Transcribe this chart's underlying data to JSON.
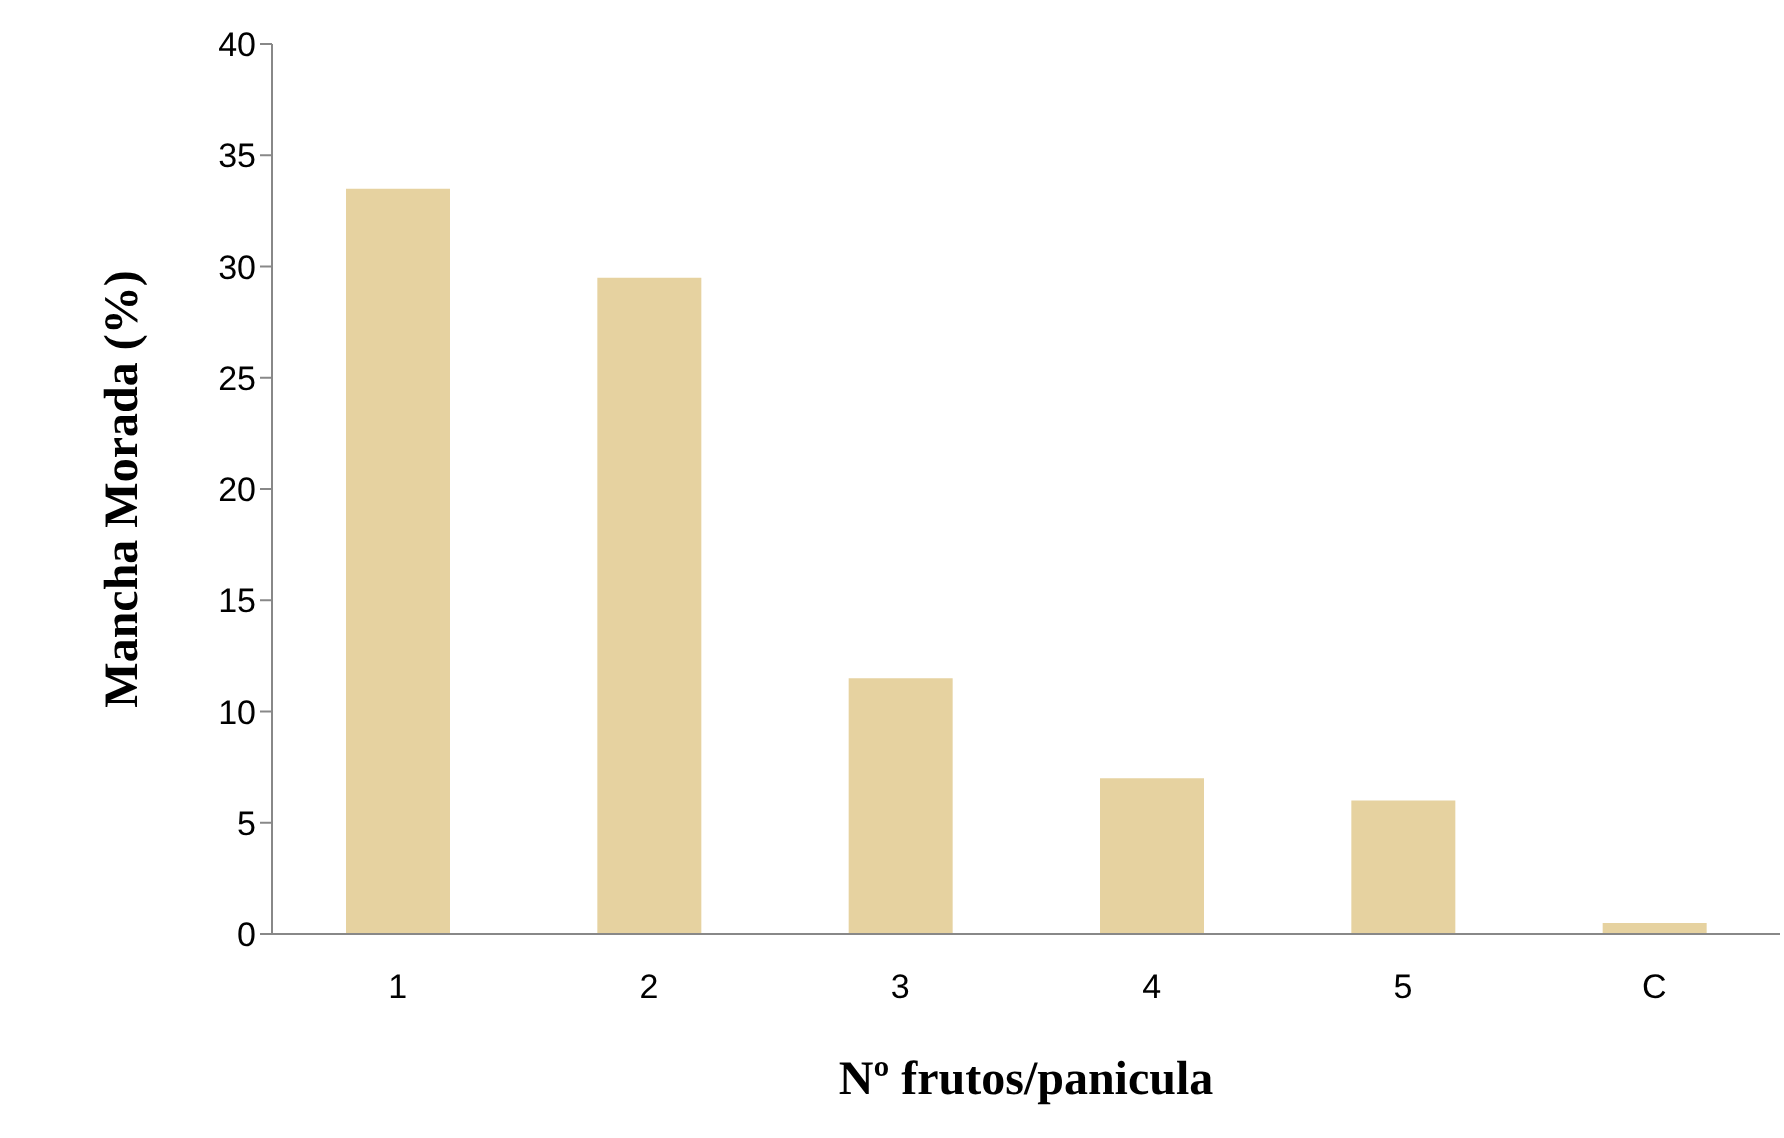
{
  "chart_data": {
    "type": "bar",
    "xlabel": "Nº frutos/panicula",
    "ylabel": "Mancha Morada (%)",
    "categories": [
      "1",
      "2",
      "3",
      "4",
      "5",
      "C"
    ],
    "values": [
      33.5,
      29.5,
      11.5,
      7.0,
      6.0,
      0.5
    ],
    "color": "#e6d2a0",
    "ylim": [
      0,
      40
    ],
    "yticks": [
      0,
      5,
      10,
      15,
      20,
      25,
      30,
      35,
      40
    ],
    "grid": false,
    "legend": false
  }
}
